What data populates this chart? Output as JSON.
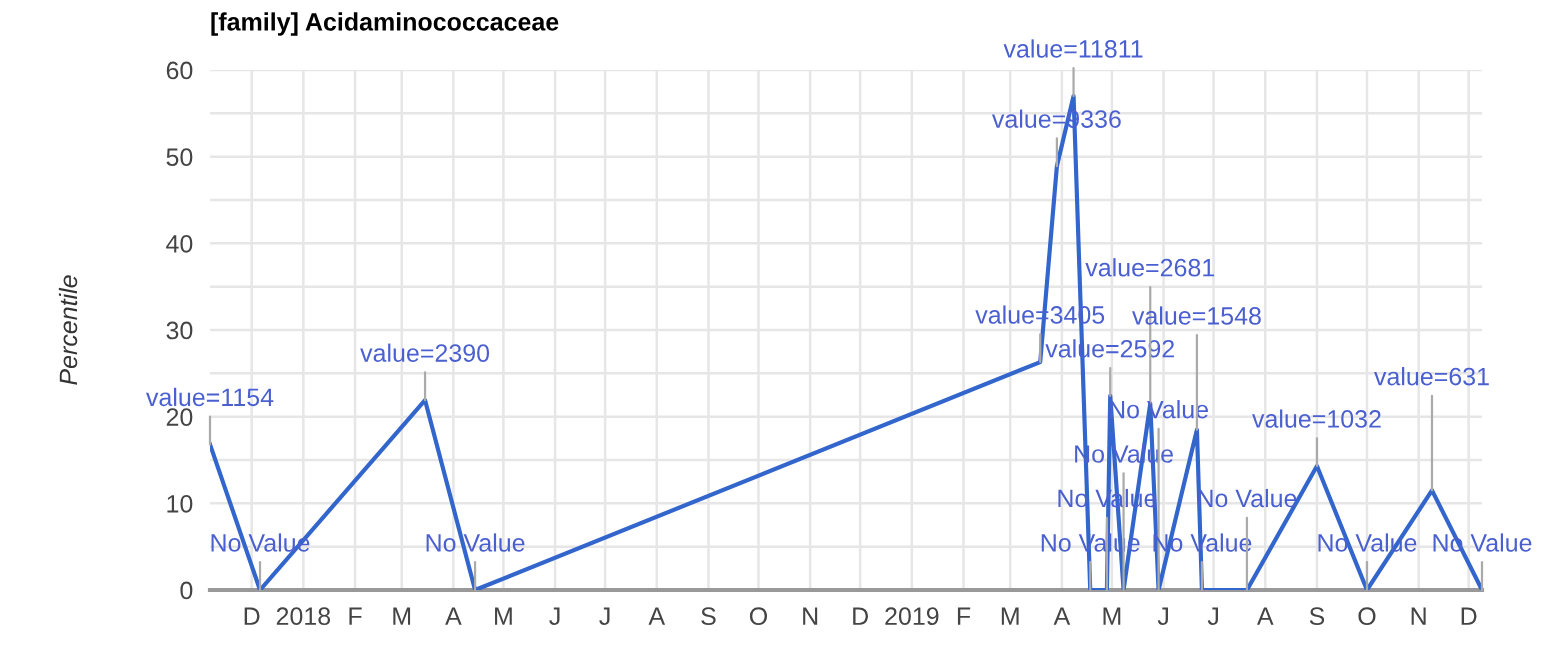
{
  "chart_data": {
    "type": "line",
    "title": "[family] Acidaminococcaceae",
    "ylabel": "Percentile",
    "x": [
      "2017-11-06",
      "2017-12-06",
      "2018-03-15",
      "2018-04-14",
      "2019-03-19",
      "2019-03-29",
      "2019-04-08",
      "2019-04-18",
      "2019-04-28",
      "2019-04-30",
      "2019-05-08",
      "2019-05-24",
      "2019-05-29",
      "2019-06-21",
      "2019-06-24",
      "2019-07-21",
      "2019-09-01",
      "2019-10-01",
      "2019-11-09",
      "2019-12-09"
    ],
    "series": [
      {
        "color": "#3366cc",
        "values": [
          16.8,
          0,
          21.9,
          0,
          26.3,
          48.9,
          57.0,
          0,
          0,
          22.4,
          0,
          21.5,
          0,
          18.5,
          0,
          0,
          14.3,
          0,
          11.5,
          0
        ]
      }
    ],
    "annotations": [
      {
        "text": "value=1154",
        "x": "2017-11-06",
        "y": 16.8
      },
      {
        "text": "No Value",
        "x": "2017-12-06",
        "y": 0
      },
      {
        "text": "value=2390",
        "x": "2018-03-15",
        "y": 21.9
      },
      {
        "text": "No Value",
        "x": "2018-04-14",
        "y": 0
      },
      {
        "text": "value=3405",
        "x": "2019-03-19",
        "y": 26.3
      },
      {
        "text": "value=9336",
        "x": "2019-03-29",
        "y": 48.9
      },
      {
        "text": "value=11811",
        "x": "2019-04-08",
        "y": 57.0
      },
      {
        "text": "No Value",
        "x": "2019-04-18",
        "y": 0
      },
      {
        "text": "No Value",
        "x": "2019-04-28",
        "y": 0
      },
      {
        "text": "value=2592",
        "x": "2019-04-30",
        "y": 22.4
      },
      {
        "text": "No Value",
        "x": "2019-05-08",
        "y": 0
      },
      {
        "text": "value=2681",
        "x": "2019-05-24",
        "y": 21.5
      },
      {
        "text": "No Value",
        "x": "2019-05-29",
        "y": 0
      },
      {
        "text": "value=1548",
        "x": "2019-06-21",
        "y": 18.5
      },
      {
        "text": "No Value",
        "x": "2019-06-24",
        "y": 0
      },
      {
        "text": "No Value",
        "x": "2019-07-21",
        "y": 0
      },
      {
        "text": "value=1032",
        "x": "2019-09-01",
        "y": 14.3
      },
      {
        "text": "No Value",
        "x": "2019-10-01",
        "y": 0
      },
      {
        "text": "value=631",
        "x": "2019-11-09",
        "y": 11.5
      },
      {
        "text": "No Value",
        "x": "2019-12-09",
        "y": 0
      }
    ],
    "xlim": [
      "2017-11-06",
      "2019-12-09"
    ],
    "xticks": [
      {
        "value": "2017-12-01",
        "label": "D"
      },
      {
        "value": "2018-01-01",
        "label": "2018"
      },
      {
        "value": "2018-02-01",
        "label": "F"
      },
      {
        "value": "2018-03-01",
        "label": "M"
      },
      {
        "value": "2018-04-01",
        "label": "A"
      },
      {
        "value": "2018-05-01",
        "label": "M"
      },
      {
        "value": "2018-06-01",
        "label": "J"
      },
      {
        "value": "2018-07-01",
        "label": "J"
      },
      {
        "value": "2018-08-01",
        "label": "A"
      },
      {
        "value": "2018-09-01",
        "label": "S"
      },
      {
        "value": "2018-10-01",
        "label": "O"
      },
      {
        "value": "2018-11-01",
        "label": "N"
      },
      {
        "value": "2018-12-01",
        "label": "D"
      },
      {
        "value": "2019-01-01",
        "label": "2019"
      },
      {
        "value": "2019-02-01",
        "label": "F"
      },
      {
        "value": "2019-03-01",
        "label": "M"
      },
      {
        "value": "2019-04-01",
        "label": "A"
      },
      {
        "value": "2019-05-01",
        "label": "M"
      },
      {
        "value": "2019-06-01",
        "label": "J"
      },
      {
        "value": "2019-07-01",
        "label": "J"
      },
      {
        "value": "2019-08-01",
        "label": "A"
      },
      {
        "value": "2019-09-01",
        "label": "S"
      },
      {
        "value": "2019-10-01",
        "label": "O"
      },
      {
        "value": "2019-11-01",
        "label": "N"
      },
      {
        "value": "2019-12-01",
        "label": "D"
      }
    ],
    "ylim": [
      0,
      60
    ],
    "yticks": [
      0,
      {
        "value": 5,
        "label": null
      },
      10,
      {
        "value": 15,
        "label": null
      },
      20,
      {
        "value": 25,
        "label": null
      },
      30,
      {
        "value": 35,
        "label": null
      },
      40,
      {
        "value": 45,
        "label": null
      },
      50,
      {
        "value": 55,
        "label": null
      },
      60
    ],
    "grid": true,
    "marker": "none",
    "line_style": "solid"
  }
}
